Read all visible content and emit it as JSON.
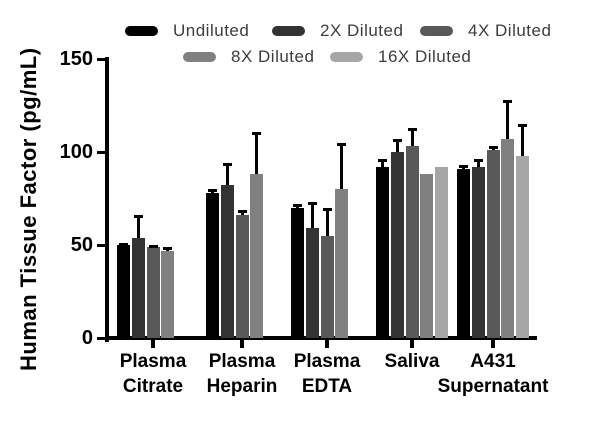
{
  "chart_data": {
    "type": "bar",
    "title": "",
    "ylabel": "Human Tissue Factor (pg/mL)",
    "xlabel": "",
    "ylim": [
      0,
      150
    ],
    "yticks": [
      0,
      50,
      100,
      150
    ],
    "grid": false,
    "legend_position": "top",
    "categories": [
      "Plasma Citrate",
      "Plasma Heparin",
      "Plasma EDTA",
      "Saliva",
      "A431 Supernatant"
    ],
    "category_lines": [
      [
        "Plasma",
        "Citrate"
      ],
      [
        "Plasma",
        "Heparin"
      ],
      [
        "Plasma",
        "EDTA"
      ],
      [
        "Saliva",
        ""
      ],
      [
        "A431",
        "Supernatant"
      ]
    ],
    "series": [
      {
        "name": "Undiluted",
        "color": "#000000",
        "values": [
          50,
          78,
          70,
          92,
          91
        ],
        "errors": [
          1,
          2,
          2,
          4,
          2
        ]
      },
      {
        "name": "2X Diluted",
        "color": "#333333",
        "values": [
          54,
          82,
          59,
          100,
          92
        ],
        "errors": [
          12,
          12,
          14,
          7,
          4
        ]
      },
      {
        "name": "4X Diluted",
        "color": "#595959",
        "values": [
          49,
          66,
          55,
          103,
          101
        ],
        "errors": [
          1,
          3,
          15,
          10,
          2
        ]
      },
      {
        "name": "8X Diluted",
        "color": "#808080",
        "values": [
          47,
          88,
          80,
          88,
          107
        ],
        "errors": [
          2,
          23,
          25,
          0,
          21
        ]
      },
      {
        "name": "16X Diluted",
        "color": "#a6a6a6",
        "values": [
          null,
          null,
          null,
          92,
          98
        ],
        "errors": [
          null,
          null,
          null,
          0,
          17
        ]
      }
    ],
    "axis_color": "#000000",
    "error_bar_color": "#000000",
    "legend_text_color": "#3d3d3d"
  }
}
